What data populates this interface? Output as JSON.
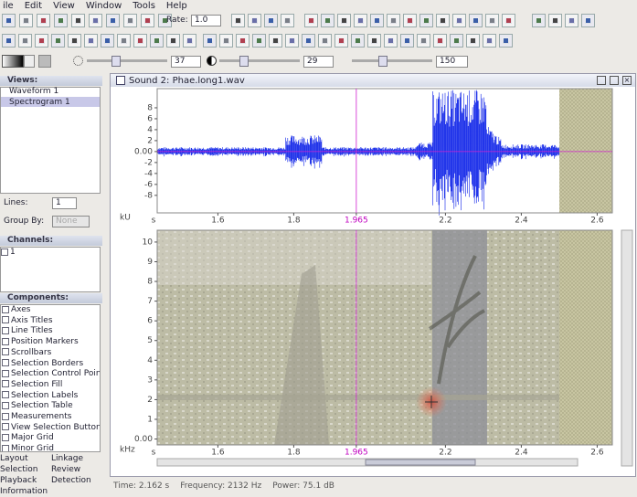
{
  "menu": [
    "ile",
    "Edit",
    "View",
    "Window",
    "Tools",
    "Help"
  ],
  "toolbar": {
    "rate_label": "Rate:",
    "rate_value": "1.0",
    "brightness": "37",
    "contrast": "29",
    "resolution": "150"
  },
  "side_panel": {
    "views_title": "Views:",
    "views": [
      "Waveform 1",
      "Spectrogram 1"
    ],
    "lines_label": "Lines:",
    "lines_value": "1",
    "group_by_label": "Group By:",
    "group_by_value": "None",
    "channels_title": "Channels:",
    "channels": [
      "1"
    ],
    "components_title": "Components:",
    "components": [
      "Axes",
      "Axis Titles",
      "Line Titles",
      "Position Markers",
      "Scrollbars",
      "Selection Borders",
      "Selection Control Points",
      "Selection Fill",
      "Selection Labels",
      "Selection Table",
      "Measurements",
      "View Selection Buttons",
      "Major Grid",
      "Minor Grid"
    ]
  },
  "tabs": [
    [
      "Layout",
      "Linkage"
    ],
    [
      "Selection",
      "Review"
    ],
    [
      "Playback",
      "Detection"
    ],
    [
      "Information"
    ]
  ],
  "sound_window": {
    "title": "Sound 2: Phae.long1.wav",
    "x_unit": "s",
    "xlim": [
      1.44,
      2.64
    ],
    "xticks": [
      1.6,
      1.8,
      1.965,
      2.2,
      2.4,
      2.6
    ],
    "waveform": {
      "unit": "kU",
      "ylim": [
        -11.2,
        11.5
      ],
      "yticks": [
        8,
        6,
        4,
        2,
        {
          "value": 0,
          "label": "0.00"
        },
        -2,
        -4,
        -6,
        -8
      ]
    },
    "spectrogram": {
      "unit": "kHz",
      "ylim": [
        -0.3,
        10.6
      ],
      "yticks": [
        10,
        9,
        8,
        7,
        6,
        5,
        4,
        3,
        2,
        1,
        {
          "value": 0,
          "label": "0.00"
        }
      ]
    }
  },
  "status": [
    "Time: 2.162 s",
    "Frequency: 2132 Hz",
    "Power: 75.1 dB"
  ]
}
